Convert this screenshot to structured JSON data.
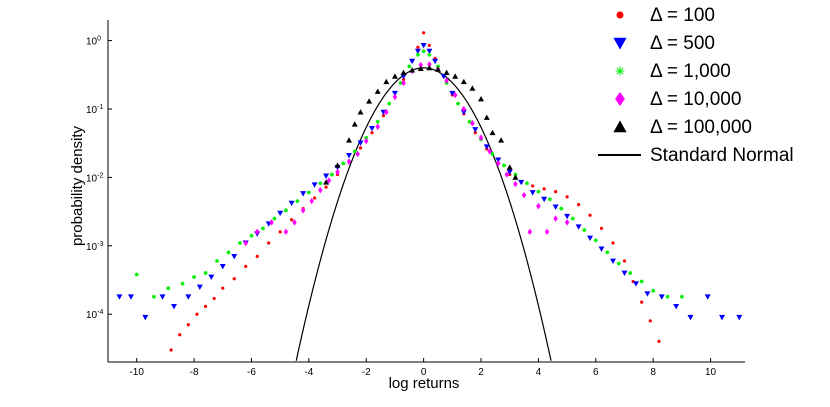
{
  "chart_data": {
    "type": "scatter",
    "xlabel": "log returns",
    "ylabel": "probability density",
    "xlim": [
      -11,
      11.2
    ],
    "ylim": [
      2e-05,
      2
    ],
    "yscale": "log",
    "xticks": [
      -10,
      -8,
      -6,
      -4,
      -2,
      0,
      2,
      4,
      6,
      8,
      10
    ],
    "yticks": [
      {
        "value": 0.0001,
        "label": "10^-4",
        "base": "10",
        "exp": "-4"
      },
      {
        "value": 0.001,
        "label": "10^-3",
        "base": "10",
        "exp": "-3"
      },
      {
        "value": 0.01,
        "label": "10^-2",
        "base": "10",
        "exp": "-2"
      },
      {
        "value": 0.1,
        "label": "10^-1",
        "base": "10",
        "exp": "-1"
      },
      {
        "value": 1,
        "label": "10^0",
        "base": "10",
        "exp": "0"
      }
    ],
    "grid": false,
    "legend": "top-right",
    "series": [
      {
        "name": "Δ = 100",
        "marker": "circle",
        "color": "#ff0000",
        "points": [
          [
            -8.8,
            3e-05
          ],
          [
            -8.5,
            5e-05
          ],
          [
            -8.2,
            7e-05
          ],
          [
            -7.9,
            0.0001
          ],
          [
            -7.6,
            0.00013
          ],
          [
            -7.3,
            0.00017
          ],
          [
            -7.0,
            0.00024
          ],
          [
            -6.6,
            0.00033
          ],
          [
            -6.2,
            0.0005
          ],
          [
            -5.8,
            0.0007
          ],
          [
            -5.4,
            0.0011
          ],
          [
            -5.0,
            0.0016
          ],
          [
            -4.6,
            0.0024
          ],
          [
            -4.2,
            0.0035
          ],
          [
            -3.8,
            0.005
          ],
          [
            -3.4,
            0.0072
          ],
          [
            -3.0,
            0.011
          ],
          [
            -2.6,
            0.017
          ],
          [
            -2.2,
            0.027
          ],
          [
            -1.8,
            0.045
          ],
          [
            -1.4,
            0.08
          ],
          [
            -1.0,
            0.15
          ],
          [
            -0.7,
            0.27
          ],
          [
            -0.4,
            0.5
          ],
          [
            -0.2,
            0.8
          ],
          [
            0.0,
            1.3
          ],
          [
            0.2,
            0.85
          ],
          [
            0.4,
            0.55
          ],
          [
            0.7,
            0.3
          ],
          [
            1.0,
            0.16
          ],
          [
            1.4,
            0.085
          ],
          [
            1.8,
            0.045
          ],
          [
            2.2,
            0.026
          ],
          [
            2.6,
            0.016
          ],
          [
            3.0,
            0.011
          ],
          [
            3.4,
            0.0085
          ],
          [
            3.8,
            0.0075
          ],
          [
            4.2,
            0.0068
          ],
          [
            4.6,
            0.0062
          ],
          [
            5.0,
            0.0052
          ],
          [
            5.4,
            0.004
          ],
          [
            5.8,
            0.0028
          ],
          [
            6.2,
            0.0018
          ],
          [
            6.6,
            0.0011
          ],
          [
            7.0,
            0.0006
          ],
          [
            7.3,
            0.0003
          ],
          [
            7.6,
            0.00015
          ],
          [
            7.9,
            8e-05
          ],
          [
            8.2,
            4e-05
          ]
        ]
      },
      {
        "name": "Δ = 500",
        "marker": "triangle-down",
        "color": "#0000ff",
        "points": [
          [
            -10.6,
            0.00018
          ],
          [
            -10.2,
            0.00018
          ],
          [
            -9.7,
            9e-05
          ],
          [
            -9.1,
            0.00018
          ],
          [
            -8.7,
            0.00013
          ],
          [
            -8.2,
            0.00018
          ],
          [
            -7.8,
            0.00025
          ],
          [
            -7.4,
            0.00035
          ],
          [
            -7.0,
            0.0005
          ],
          [
            -6.6,
            0.0007
          ],
          [
            -6.2,
            0.0011
          ],
          [
            -5.8,
            0.0015
          ],
          [
            -5.4,
            0.0021
          ],
          [
            -5.0,
            0.003
          ],
          [
            -4.6,
            0.0042
          ],
          [
            -4.2,
            0.0058
          ],
          [
            -3.8,
            0.0078
          ],
          [
            -3.4,
            0.0105
          ],
          [
            -3.0,
            0.014
          ],
          [
            -2.6,
            0.021
          ],
          [
            -2.2,
            0.032
          ],
          [
            -1.8,
            0.052
          ],
          [
            -1.4,
            0.09
          ],
          [
            -1.0,
            0.17
          ],
          [
            -0.7,
            0.3
          ],
          [
            -0.4,
            0.5
          ],
          [
            -0.2,
            0.7
          ],
          [
            0.0,
            0.85
          ],
          [
            0.2,
            0.7
          ],
          [
            0.4,
            0.5
          ],
          [
            0.7,
            0.3
          ],
          [
            1.0,
            0.17
          ],
          [
            1.4,
            0.09
          ],
          [
            1.8,
            0.05
          ],
          [
            2.2,
            0.028
          ],
          [
            2.6,
            0.018
          ],
          [
            3.0,
            0.012
          ],
          [
            3.4,
            0.0085
          ],
          [
            3.8,
            0.006
          ],
          [
            4.2,
            0.0048
          ],
          [
            4.6,
            0.0037
          ],
          [
            5.0,
            0.0027
          ],
          [
            5.4,
            0.0019
          ],
          [
            5.8,
            0.0013
          ],
          [
            6.2,
            0.0009
          ],
          [
            6.6,
            0.0006
          ],
          [
            7.0,
            0.0004
          ],
          [
            7.4,
            0.00028
          ],
          [
            7.8,
            0.0002
          ],
          [
            8.3,
            0.00018
          ],
          [
            8.8,
            0.00013
          ],
          [
            9.3,
            9e-05
          ],
          [
            9.9,
            0.00018
          ],
          [
            10.4,
            9e-05
          ],
          [
            11.0,
            9e-05
          ]
        ]
      },
      {
        "name": "Δ = 1,000",
        "marker": "asterisk",
        "color": "#00ee00",
        "points": [
          [
            -10.0,
            0.00038
          ],
          [
            -9.4,
            0.00018
          ],
          [
            -8.9,
            0.00024
          ],
          [
            -8.4,
            0.00028
          ],
          [
            -8.0,
            0.00035
          ],
          [
            -7.6,
            0.0004
          ],
          [
            -7.2,
            0.0006
          ],
          [
            -6.8,
            0.0008
          ],
          [
            -6.4,
            0.0011
          ],
          [
            -6.0,
            0.0014
          ],
          [
            -5.6,
            0.0018
          ],
          [
            -5.2,
            0.0025
          ],
          [
            -4.8,
            0.0033
          ],
          [
            -4.4,
            0.0045
          ],
          [
            -4.0,
            0.006
          ],
          [
            -3.6,
            0.0082
          ],
          [
            -3.2,
            0.011
          ],
          [
            -2.8,
            0.016
          ],
          [
            -2.4,
            0.024
          ],
          [
            -2.0,
            0.038
          ],
          [
            -1.6,
            0.065
          ],
          [
            -1.2,
            0.12
          ],
          [
            -0.8,
            0.24
          ],
          [
            -0.5,
            0.42
          ],
          [
            -0.2,
            0.62
          ],
          [
            0.0,
            0.7
          ],
          [
            0.2,
            0.62
          ],
          [
            0.5,
            0.42
          ],
          [
            0.8,
            0.24
          ],
          [
            1.2,
            0.12
          ],
          [
            1.6,
            0.065
          ],
          [
            2.0,
            0.036
          ],
          [
            2.4,
            0.022
          ],
          [
            2.8,
            0.015
          ],
          [
            3.2,
            0.011
          ],
          [
            3.6,
            0.0082
          ],
          [
            4.0,
            0.0062
          ],
          [
            4.4,
            0.0048
          ],
          [
            4.8,
            0.0035
          ],
          [
            5.2,
            0.0025
          ],
          [
            5.6,
            0.0017
          ],
          [
            6.0,
            0.0012
          ],
          [
            6.4,
            0.0008
          ],
          [
            6.8,
            0.00055
          ],
          [
            7.2,
            0.0004
          ],
          [
            7.6,
            0.0003
          ],
          [
            8.0,
            0.00022
          ],
          [
            8.5,
            0.00018
          ],
          [
            9.0,
            0.00018
          ]
        ]
      },
      {
        "name": "Δ = 10,000",
        "marker": "diamond",
        "color": "#ff00ff",
        "points": [
          [
            -6.2,
            0.0011
          ],
          [
            -5.8,
            0.0016
          ],
          [
            -5.3,
            0.0022
          ],
          [
            -4.8,
            0.0016
          ],
          [
            -4.5,
            0.0022
          ],
          [
            -4.2,
            0.0033
          ],
          [
            -3.9,
            0.0045
          ],
          [
            -3.6,
            0.0065
          ],
          [
            -3.3,
            0.009
          ],
          [
            -3.0,
            0.012
          ],
          [
            -2.6,
            0.017
          ],
          [
            -2.3,
            0.022
          ],
          [
            -2.0,
            0.034
          ],
          [
            -1.6,
            0.055
          ],
          [
            -1.3,
            0.09
          ],
          [
            -1.0,
            0.15
          ],
          [
            -0.7,
            0.24
          ],
          [
            -0.4,
            0.36
          ],
          [
            -0.1,
            0.44
          ],
          [
            0.2,
            0.45
          ],
          [
            0.5,
            0.38
          ],
          [
            0.8,
            0.26
          ],
          [
            1.1,
            0.16
          ],
          [
            1.4,
            0.1
          ],
          [
            1.7,
            0.062
          ],
          [
            2.0,
            0.038
          ],
          [
            2.3,
            0.024
          ],
          [
            2.6,
            0.016
          ],
          [
            2.9,
            0.011
          ],
          [
            3.2,
            0.008
          ],
          [
            3.5,
            0.0055
          ],
          [
            3.7,
            0.0016
          ],
          [
            4.0,
            0.0038
          ],
          [
            4.3,
            0.0016
          ],
          [
            4.6,
            0.0025
          ],
          [
            5.0,
            0.0022
          ]
        ]
      },
      {
        "name": "Δ = 100,000",
        "marker": "triangle-up",
        "color": "#000000",
        "points": [
          [
            -3.4,
            0.0085
          ],
          [
            -3.0,
            0.015
          ],
          [
            -2.6,
            0.035
          ],
          [
            -2.4,
            0.06
          ],
          [
            -2.2,
            0.09
          ],
          [
            -1.9,
            0.13
          ],
          [
            -1.6,
            0.18
          ],
          [
            -1.3,
            0.25
          ],
          [
            -1.0,
            0.3
          ],
          [
            -0.7,
            0.34
          ],
          [
            -0.4,
            0.37
          ],
          [
            -0.1,
            0.39
          ],
          [
            0.2,
            0.4
          ],
          [
            0.5,
            0.38
          ],
          [
            0.8,
            0.34
          ],
          [
            1.1,
            0.3
          ],
          [
            1.4,
            0.25
          ],
          [
            1.7,
            0.2
          ],
          [
            2.0,
            0.14
          ],
          [
            2.2,
            0.075
          ],
          [
            2.4,
            0.045
          ],
          [
            2.7,
            0.035
          ],
          [
            3.0,
            0.014
          ],
          [
            3.2,
            0.01
          ]
        ]
      },
      {
        "name": "Standard Normal",
        "marker": "line",
        "color": "#000000",
        "function": "standard_normal_pdf"
      }
    ]
  }
}
